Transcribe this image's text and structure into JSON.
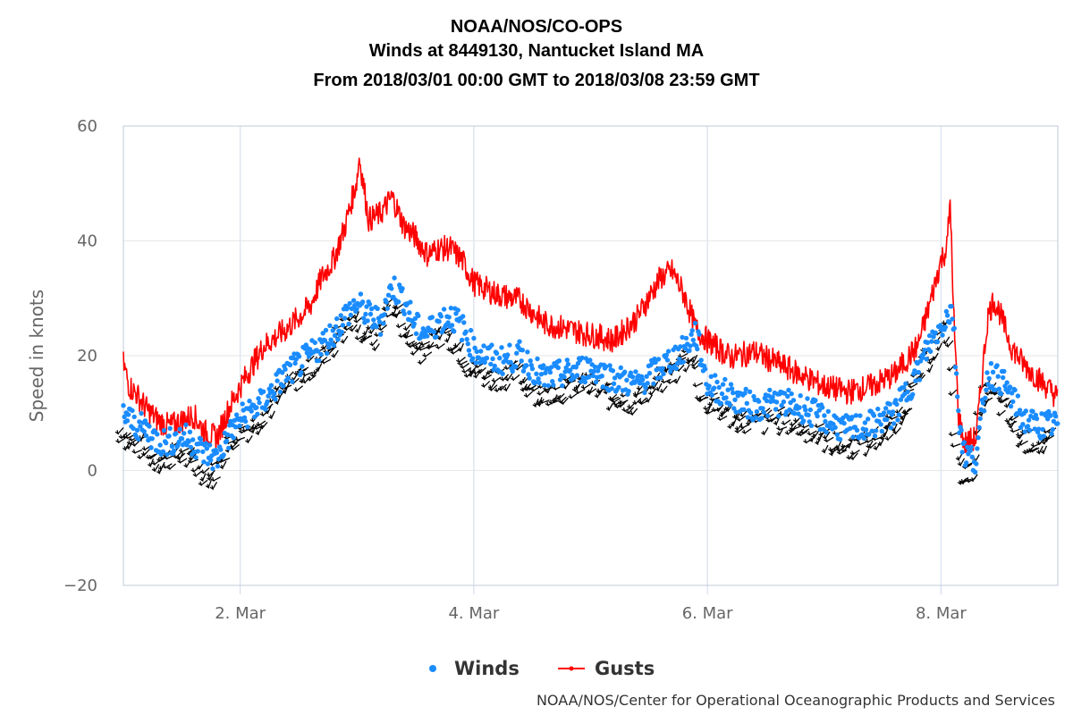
{
  "chart_data": {
    "type": "line",
    "title": [
      "NOAA/NOS/CO-OPS",
      "Winds at 8449130, Nantucket Island MA",
      "From 2018/03/01 00:00 GMT to 2018/03/08 23:59 GMT"
    ],
    "xlabel": "",
    "ylabel": "Speed in knots",
    "xlim": [
      1.0,
      9.0
    ],
    "ylim": [
      -20,
      60
    ],
    "yticks": [
      -20,
      0,
      20,
      40,
      60
    ],
    "xticks": [
      {
        "value": 2,
        "label": "2. Mar"
      },
      {
        "value": 4,
        "label": "4. Mar"
      },
      {
        "value": 6,
        "label": "6. Mar"
      },
      {
        "value": 8,
        "label": "8. Mar"
      }
    ],
    "grid": true,
    "legend_position": "bottom-center",
    "series": [
      {
        "name": "Winds",
        "style": "scatter",
        "color": "#1a8cff",
        "x": [
          1.0,
          1.1,
          1.2,
          1.3,
          1.4,
          1.5,
          1.6,
          1.7,
          1.8,
          1.9,
          2.0,
          2.2,
          2.4,
          2.6,
          2.8,
          2.9,
          3.0,
          3.1,
          3.2,
          3.3,
          3.4,
          3.5,
          3.6,
          3.7,
          3.8,
          3.9,
          4.0,
          4.2,
          4.4,
          4.6,
          4.8,
          5.0,
          5.2,
          5.4,
          5.6,
          5.8,
          5.9,
          6.0,
          6.2,
          6.4,
          6.6,
          6.8,
          7.0,
          7.2,
          7.4,
          7.6,
          7.8,
          7.9,
          8.0,
          8.05,
          8.1,
          8.15,
          8.2,
          8.3,
          8.4,
          8.5,
          8.6,
          8.7,
          8.8,
          9.0
        ],
        "values": [
          10,
          8,
          7,
          5,
          5,
          6,
          5,
          3,
          2,
          6,
          9,
          12,
          17,
          20,
          24,
          27,
          29,
          27,
          26,
          32,
          30,
          25,
          24,
          26,
          27,
          25,
          21,
          19,
          20,
          16,
          17,
          18,
          16,
          15,
          18,
          21,
          24,
          15,
          13,
          11,
          12,
          11,
          9,
          7,
          8,
          10,
          17,
          22,
          25,
          27,
          28,
          10,
          3,
          2,
          17,
          16,
          13,
          9,
          8,
          8
        ]
      },
      {
        "name": "Gusts",
        "style": "line",
        "color": "#ff0000",
        "x": [
          1.0,
          1.05,
          1.1,
          1.2,
          1.3,
          1.4,
          1.5,
          1.6,
          1.7,
          1.8,
          1.9,
          2.0,
          2.2,
          2.4,
          2.6,
          2.7,
          2.8,
          2.9,
          3.0,
          3.02,
          3.1,
          3.2,
          3.3,
          3.4,
          3.5,
          3.6,
          3.7,
          3.8,
          3.9,
          4.0,
          4.2,
          4.4,
          4.6,
          4.8,
          5.0,
          5.2,
          5.4,
          5.6,
          5.7,
          5.8,
          5.9,
          6.0,
          6.2,
          6.4,
          6.6,
          6.8,
          7.0,
          7.2,
          7.4,
          7.6,
          7.8,
          7.9,
          8.0,
          8.05,
          8.08,
          8.1,
          8.15,
          8.2,
          8.3,
          8.4,
          8.45,
          8.5,
          8.6,
          8.7,
          8.8,
          8.9,
          9.0
        ],
        "values": [
          18,
          14,
          13,
          10,
          8,
          7,
          8,
          9,
          6,
          5,
          10,
          14,
          21,
          24,
          28,
          33,
          36,
          42,
          50,
          54,
          43,
          44,
          47,
          42,
          40,
          37,
          38,
          38,
          36,
          32,
          30,
          29,
          25,
          24,
          23,
          22,
          26,
          33,
          34,
          30,
          24,
          22,
          19,
          20,
          18,
          16,
          14,
          13,
          14,
          16,
          21,
          28,
          36,
          38,
          47,
          30,
          9,
          4,
          5,
          26,
          29,
          27,
          21,
          18,
          16,
          14,
          12
        ]
      }
    ],
    "credit": "NOAA/NOS/Center for Operational Oceanographic Products and Services"
  }
}
